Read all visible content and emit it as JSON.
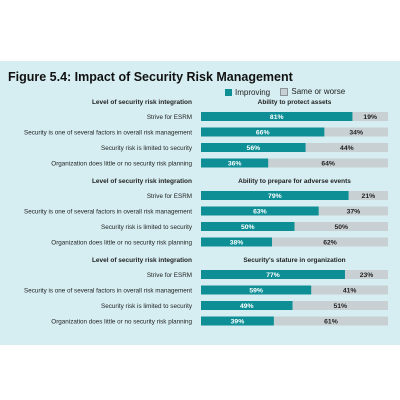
{
  "figure_title": "Figure 5.4: Impact of Security Risk Management",
  "legend": [
    "Improving",
    "Same or worse"
  ],
  "colors": {
    "improving": "#0e8f96",
    "same": "#c9d0d3"
  },
  "chart_data": [
    {
      "type": "bar",
      "stacked": true,
      "orientation": "horizontal",
      "row_header": "Level of security risk integration",
      "title": "Ability to protect assets",
      "categories": [
        "Strive for ESRM",
        "Security is one of several factors in overall risk management",
        "Security risk is limited to security",
        "Organization does little or no security risk planning"
      ],
      "series": [
        {
          "name": "Improving",
          "values": [
            81,
            66,
            56,
            36
          ]
        },
        {
          "name": "Same or worse",
          "values": [
            19,
            34,
            44,
            64
          ]
        }
      ]
    },
    {
      "type": "bar",
      "stacked": true,
      "orientation": "horizontal",
      "row_header": "Level of security risk integration",
      "title": "Ability to prepare for adverse events",
      "categories": [
        "Strive for ESRM",
        "Security is one of several factors in overall risk management",
        "Security risk is limited to security",
        "Organization does little or no security risk planning"
      ],
      "series": [
        {
          "name": "Improving",
          "values": [
            79,
            63,
            50,
            38
          ]
        },
        {
          "name": "Same or worse",
          "values": [
            21,
            37,
            50,
            62
          ]
        }
      ]
    },
    {
      "type": "bar",
      "stacked": true,
      "orientation": "horizontal",
      "row_header": "Level of security risk integration",
      "title": "Security's stature in organization",
      "categories": [
        "Strive for ESRM",
        "Security is one of several factors in overall risk management",
        "Security risk is limited to security",
        "Organization does little or no security risk planning"
      ],
      "series": [
        {
          "name": "Improving",
          "values": [
            77,
            59,
            49,
            39
          ]
        },
        {
          "name": "Same or worse",
          "values": [
            23,
            41,
            51,
            61
          ]
        }
      ]
    }
  ]
}
